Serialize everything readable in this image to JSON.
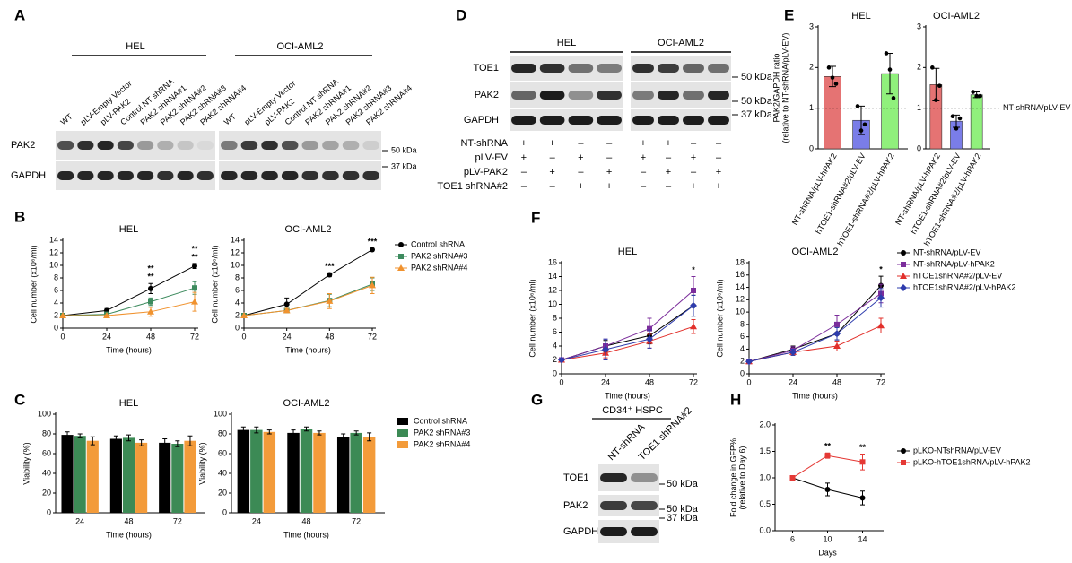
{
  "panel_labels": [
    "A",
    "B",
    "C",
    "D",
    "E",
    "F",
    "G",
    "H"
  ],
  "blot_a": {
    "groups": [
      "HEL",
      "OCI-AML2"
    ],
    "lanes": [
      "WT",
      "pLV-Empty Vector",
      "pLV-PAK2",
      "Control NT shRNA",
      "PAK2 shRNA#1",
      "PAK2 shRNA#2",
      "PAK2 shRNA#3",
      "PAK2 shRNA#4"
    ],
    "rows": [
      "PAK2",
      "GAPDH"
    ],
    "markers": [
      "50 kDa",
      "37 kDa"
    ]
  },
  "blot_d": {
    "groups": [
      "HEL",
      "OCI-AML2"
    ],
    "rows": [
      "TOE1",
      "PAK2",
      "GAPDH"
    ],
    "markers": [
      "50 kDa",
      "50 kDa",
      "37 kDa"
    ],
    "conditions": [
      {
        "name": "NT-shRNA",
        "signs": [
          "+",
          "+",
          "–",
          "–",
          "+",
          "+",
          "–",
          "–"
        ]
      },
      {
        "name": "pLV-EV",
        "signs": [
          "+",
          "–",
          "+",
          "–",
          "+",
          "–",
          "+",
          "–"
        ]
      },
      {
        "name": "pLV-PAK2",
        "signs": [
          "–",
          "+",
          "–",
          "+",
          "–",
          "+",
          "–",
          "+"
        ]
      },
      {
        "name": "TOE1 shRNA#2",
        "signs": [
          "–",
          "–",
          "+",
          "+",
          "–",
          "–",
          "+",
          "+"
        ]
      }
    ]
  },
  "blot_g": {
    "title": "CD34⁺ HSPC",
    "lanes": [
      "NT-shRNA",
      "TOE1 shRNA#2"
    ],
    "rows": [
      "TOE1",
      "PAK2",
      "GAPDH"
    ],
    "markers": [
      "50 kDa",
      "50 kDa",
      "37 kDa"
    ]
  },
  "chart_data": [
    {
      "type": "line",
      "title": "HEL",
      "x": [
        0,
        24,
        48,
        72
      ],
      "xlim": [
        0,
        72
      ],
      "xticks": [
        0,
        24,
        48,
        72
      ],
      "ylim": [
        0,
        14
      ],
      "yticks": [
        0,
        2,
        4,
        6,
        8,
        10,
        12,
        14
      ],
      "xlabel": "Time (hours)",
      "ylabel": "Cell number (x10⁶/ml)",
      "series": [
        {
          "color": "#000000",
          "marker": "circle",
          "values": [
            2,
            2.8,
            6.3,
            9.9
          ],
          "errors": [
            0,
            0.3,
            0.8,
            0.4
          ]
        },
        {
          "color": "#3d8b5e",
          "marker": "square",
          "values": [
            2,
            2.2,
            4.2,
            6.4
          ],
          "errors": [
            0,
            0.2,
            0.6,
            1
          ],
          "annotations": [
            null,
            null,
            "**",
            "**"
          ]
        },
        {
          "color": "#f0922e",
          "marker": "triangle",
          "values": [
            2,
            2,
            2.6,
            4.2
          ],
          "errors": [
            0,
            0.1,
            0.7,
            1.5
          ],
          "annotations": [
            null,
            null,
            "**",
            "**"
          ]
        }
      ]
    },
    {
      "type": "line",
      "title": "OCI-AML2",
      "x": [
        0,
        24,
        48,
        72
      ],
      "xlim": [
        0,
        72
      ],
      "xticks": [
        0,
        24,
        48,
        72
      ],
      "ylim": [
        0,
        14
      ],
      "yticks": [
        0,
        2,
        4,
        6,
        8,
        10,
        12,
        14
      ],
      "xlabel": "Time (hours)",
      "ylabel": "Cell number (x10⁶/ml)",
      "series": [
        {
          "name": "Control shRNA",
          "color": "#000000",
          "marker": "circle",
          "values": [
            2,
            3.8,
            8.5,
            12.5
          ],
          "errors": [
            0,
            1,
            0.3,
            0.2
          ]
        },
        {
          "name": "PAK2 shRNA#3",
          "color": "#3d8b5e",
          "marker": "square",
          "values": [
            2,
            2.8,
            4.4,
            7
          ],
          "errors": [
            0,
            0.3,
            1,
            1
          ]
        },
        {
          "name": "PAK2 shRNA#4",
          "color": "#f0922e",
          "marker": "triangle",
          "values": [
            2,
            2.8,
            4.3,
            6.8
          ],
          "errors": [
            0,
            0.3,
            1.2,
            1.3
          ],
          "annotations": [
            null,
            null,
            "***",
            "***"
          ]
        }
      ]
    },
    {
      "type": "bar",
      "title": "HEL",
      "categories": [
        "24",
        "48",
        "72"
      ],
      "ylim": [
        0,
        100
      ],
      "yticks": [
        0,
        20,
        40,
        60,
        80,
        100
      ],
      "xlabel": "Time (hours)",
      "ylabel": "Viability (%)",
      "series": [
        {
          "color": "#000000",
          "values": [
            79,
            75,
            71
          ],
          "errors": [
            3,
            3,
            4
          ]
        },
        {
          "color": "#3c8a55",
          "values": [
            78,
            76,
            70
          ],
          "errors": [
            2,
            3,
            3
          ]
        },
        {
          "color": "#f39b3a",
          "values": [
            73,
            71,
            73
          ],
          "errors": [
            4,
            3,
            5
          ]
        }
      ]
    },
    {
      "type": "bar",
      "title": "OCI-AML2",
      "categories": [
        "24",
        "48",
        "72"
      ],
      "ylim": [
        0,
        100
      ],
      "yticks": [
        0,
        20,
        40,
        60,
        80,
        100
      ],
      "xlabel": "Time (hours)",
      "ylabel": "Viability (%)",
      "series": [
        {
          "name": "Control shRNA",
          "color": "#000000",
          "values": [
            84,
            81,
            77
          ],
          "errors": [
            3,
            3,
            3
          ]
        },
        {
          "name": "PAK2 shRNA#3",
          "color": "#3c8a55",
          "values": [
            84,
            85,
            81
          ],
          "errors": [
            3,
            2,
            2
          ]
        },
        {
          "name": "PAK2 shRNA#4",
          "color": "#f39b3a",
          "values": [
            82,
            81,
            77
          ],
          "errors": [
            2,
            2,
            4
          ]
        }
      ]
    },
    {
      "type": "bar",
      "title": "HEL",
      "categories": [
        "NT-shRNA/pLV-hPAK2",
        "hTOE1-shRNA#2/pLV-EV",
        "hTOE1-shRNA#2/pLV-hPAK2"
      ],
      "ylim": [
        0,
        3
      ],
      "yticks": [
        0,
        1,
        2,
        3
      ],
      "ylabel": [
        "PAK2/GAPDH ratio",
        "(relative to NT-shRNA/pLV-EV)"
      ],
      "values": [
        1.78,
        0.7,
        1.85
      ],
      "errors": [
        0.25,
        0.35,
        0.5
      ],
      "colors": [
        "#e57373",
        "#7a7de8",
        "#90f07c"
      ],
      "points": [
        [
          2,
          1.75,
          1.6
        ],
        [
          1.05,
          0.45,
          0.6
        ],
        [
          2.35,
          1.95,
          1.25
        ]
      ],
      "refline": {
        "value": 1
      }
    },
    {
      "type": "bar",
      "title": "OCI-AML2",
      "categories": [
        "NT-shRNA/pLV-hPAK2",
        "hTOE1-shRNA#2/pLV-EV",
        "hTOE1-shRNA#2/pLV-hPAK2"
      ],
      "ylim": [
        0,
        3
      ],
      "yticks": [
        0,
        1,
        2,
        3
      ],
      "values": [
        1.58,
        0.68,
        1.33
      ],
      "errors": [
        0.4,
        0.15,
        0.07
      ],
      "colors": [
        "#e57373",
        "#7a7de8",
        "#90f07c"
      ],
      "points": [
        [
          2,
          1.2,
          1.55
        ],
        [
          0.8,
          0.5,
          0.75
        ],
        [
          1.4,
          1.3,
          1.3
        ]
      ],
      "refline": {
        "value": 1,
        "label": "NT-shRNA/pLV-EV"
      }
    },
    {
      "type": "line",
      "title": "HEL",
      "x": [
        0,
        24,
        48,
        72
      ],
      "xlim": [
        0,
        72
      ],
      "xticks": [
        0,
        24,
        48,
        72
      ],
      "ylim": [
        0,
        16
      ],
      "yticks": [
        0,
        2,
        4,
        6,
        8,
        10,
        12,
        14,
        16
      ],
      "xlabel": "Time (hours)",
      "ylabel": "Cell number (x10⁶/ml)",
      "series": [
        {
          "color": "#000000",
          "marker": "circle",
          "values": [
            2,
            4,
            5.5,
            9.8
          ],
          "errors": [
            0,
            0.8,
            1.2,
            1.5
          ]
        },
        {
          "color": "#7b2d9b",
          "marker": "square",
          "values": [
            2,
            4,
            6.5,
            12
          ],
          "errors": [
            0,
            1,
            1.5,
            2
          ]
        },
        {
          "color": "#e2302b",
          "marker": "triangle",
          "values": [
            2,
            3,
            4.7,
            6.8
          ],
          "errors": [
            0,
            0.7,
            1,
            1
          ],
          "annotations": [
            null,
            null,
            null,
            "*"
          ]
        },
        {
          "color": "#2e3cad",
          "marker": "diamond",
          "values": [
            2,
            3.5,
            5,
            9.8
          ],
          "errors": [
            0,
            1.5,
            1.3,
            1.5
          ]
        }
      ]
    },
    {
      "type": "line",
      "title": "OCI-AML2",
      "x": [
        0,
        24,
        48,
        72
      ],
      "xlim": [
        0,
        72
      ],
      "xticks": [
        0,
        24,
        48,
        72
      ],
      "ylim": [
        0,
        18
      ],
      "yticks": [
        0,
        2,
        4,
        6,
        8,
        10,
        12,
        14,
        16,
        18
      ],
      "xlabel": "Time (hours)",
      "ylabel": "Cell number (x10⁶/ml)",
      "series": [
        {
          "name": "NT-shRNA/pLV-EV",
          "color": "#000000",
          "marker": "circle",
          "values": [
            2,
            4,
            6.5,
            14.3
          ],
          "errors": [
            0,
            0.5,
            1,
            1.5
          ]
        },
        {
          "name": "NT-shRNA/pLV-hPAK2",
          "color": "#7b2d9b",
          "marker": "square",
          "values": [
            2,
            3.8,
            8,
            13
          ],
          "errors": [
            0,
            0.6,
            1.5,
            1.5
          ]
        },
        {
          "name": "hTOE1shRNA#2/pLV-EV",
          "color": "#e2302b",
          "marker": "triangle",
          "values": [
            2,
            3.5,
            4.5,
            7.8
          ],
          "errors": [
            0,
            0.5,
            0.8,
            1.2
          ],
          "annotations": [
            null,
            null,
            null,
            "*"
          ]
        },
        {
          "name": "hTOE1shRNA#2/pLV-hPAK2",
          "color": "#2e3cad",
          "marker": "diamond",
          "values": [
            2,
            3.5,
            6.5,
            12.3
          ],
          "errors": [
            0,
            0.5,
            1,
            1.5
          ]
        }
      ]
    },
    {
      "type": "line",
      "x": [
        6,
        10,
        14
      ],
      "xlim": [
        4,
        16
      ],
      "xticks": [
        6,
        10,
        14
      ],
      "ylim": [
        0,
        2
      ],
      "yticks": [
        {
          "value": 0,
          "label": "0.0"
        },
        {
          "value": 0.5,
          "label": "0.5"
        },
        {
          "value": 1,
          "label": "1.0"
        },
        {
          "value": 1.5,
          "label": "1.5"
        },
        {
          "value": 2,
          "label": "2.0"
        }
      ],
      "xlabel": "Days",
      "ylabel": [
        "Fold change in GFP%",
        "(relative to Day 6)"
      ],
      "series": [
        {
          "name": "pLKO-NTshRNA/pLV-EV",
          "color": "#000000",
          "marker": "circle",
          "values": [
            1,
            0.78,
            0.62
          ],
          "errors": [
            0,
            0.12,
            0.13
          ]
        },
        {
          "name": "pLKO-hTOE1shRNA/pLV-hPAK2",
          "color": "#e53935",
          "marker": "square",
          "values": [
            1,
            1.42,
            1.3
          ],
          "errors": [
            0,
            0.05,
            0.15
          ],
          "annotations": [
            null,
            "**",
            "**"
          ]
        }
      ]
    }
  ]
}
